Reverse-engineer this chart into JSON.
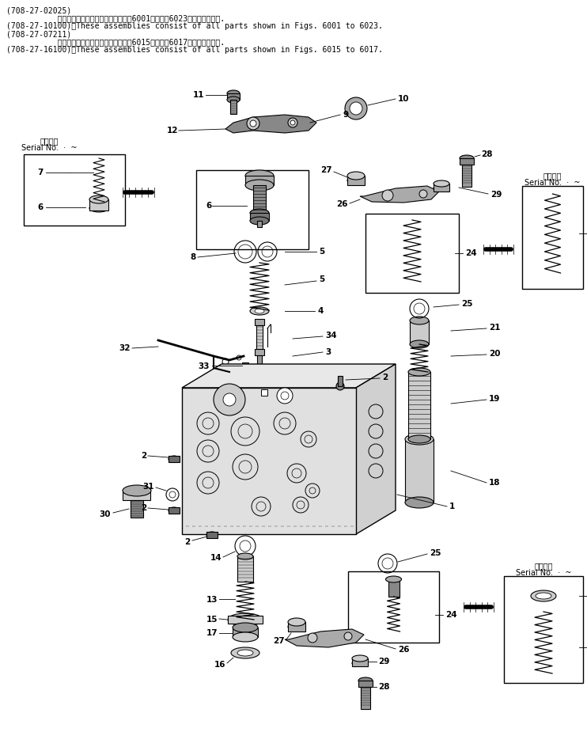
{
  "bg_color": "#ffffff",
  "fig_width": 7.42,
  "fig_height": 9.25,
  "dpi": 100,
  "header": [
    "(708-27-02025)",
    "           これらのアセンブリの構成部品は第6001図から第6023図まで含みます.",
    "(708-27-10100)：These assemblies consist of all parts shown in Figs. 6001 to 6023.",
    "(708-27-07211)",
    "           これらのアセンブリの構成部品は第6015図から第6017図まで含みます.",
    "(708-27-16100)：These assemblies consist of all parts shown in Figs. 6015 to 6017."
  ]
}
